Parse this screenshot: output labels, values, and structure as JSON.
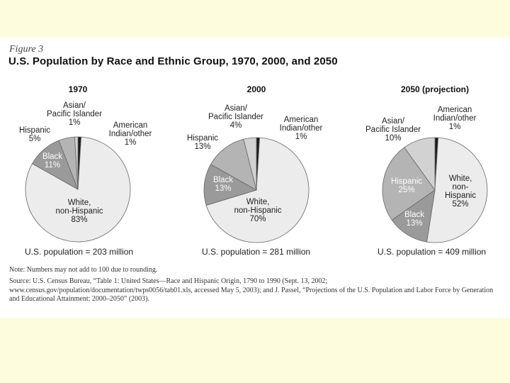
{
  "figure": {
    "label": "Figure 3",
    "title": "U.S. Population by Race and Ethnic Group, 1970, 2000, and 2050"
  },
  "note": "Note: Numbers may not add to 100 due to rounding.",
  "source": "Source: U.S. Census Bureau, “Table 1: United States—Race and Hispanic Origin, 1790 to 1990 (Sept. 13, 2002; www.census.gov/population/documentation/twps0056/tab01.xls, accessed May 5, 2003); and J. Passel, “Projections of the U.S. Population and Labor Force by Generation and Educational Attainment: 2000–2050” (2003).",
  "colors": {
    "white_nonhispanic": "#ececec",
    "black": "#9a9a9a",
    "hispanic": "#b4b4b4",
    "asian": "#d2d2d2",
    "american_indian": "#1a1a1a",
    "outline": "#666666"
  },
  "chart_data": [
    {
      "type": "pie",
      "title": "1970",
      "population_label": "U.S. population = 203 million",
      "slices": [
        {
          "name": "White, non-Hispanic",
          "label_lines": [
            "White,",
            "non-Hispanic",
            "83%"
          ],
          "value": 83,
          "color_key": "white_nonhispanic"
        },
        {
          "name": "Black",
          "label_lines": [
            "Black",
            "11%"
          ],
          "value": 11,
          "color_key": "black"
        },
        {
          "name": "Hispanic",
          "label_lines": [
            "Hispanic",
            "5%"
          ],
          "value": 5,
          "color_key": "hispanic"
        },
        {
          "name": "Asian/Pacific Islander",
          "label_lines": [
            "Asian/",
            "Pacific Islander",
            "1%"
          ],
          "value": 1,
          "color_key": "asian"
        },
        {
          "name": "American Indian/other",
          "label_lines": [
            "American",
            "Indian/other",
            "1%"
          ],
          "value": 1,
          "color_key": "american_indian"
        }
      ]
    },
    {
      "type": "pie",
      "title": "2000",
      "population_label": "U.S. population = 281 million",
      "slices": [
        {
          "name": "White, non-Hispanic",
          "label_lines": [
            "White,",
            "non-Hispanic",
            "70%"
          ],
          "value": 70,
          "color_key": "white_nonhispanic"
        },
        {
          "name": "Black",
          "label_lines": [
            "Black",
            "13%"
          ],
          "value": 13,
          "color_key": "black"
        },
        {
          "name": "Hispanic",
          "label_lines": [
            "Hispanic",
            "13%"
          ],
          "value": 13,
          "color_key": "hispanic"
        },
        {
          "name": "Asian/Pacific Islander",
          "label_lines": [
            "Asian/",
            "Pacific Islander",
            "4%"
          ],
          "value": 4,
          "color_key": "asian"
        },
        {
          "name": "American Indian/other",
          "label_lines": [
            "American",
            "Indian/other",
            "1%"
          ],
          "value": 1,
          "color_key": "american_indian"
        }
      ]
    },
    {
      "type": "pie",
      "title": "2050 (projection)",
      "population_label": "U.S. population = 409 million",
      "slices": [
        {
          "name": "White, non-Hispanic",
          "label_lines": [
            "White,",
            "non-",
            "Hispanic",
            "52%"
          ],
          "value": 52,
          "color_key": "white_nonhispanic"
        },
        {
          "name": "Black",
          "label_lines": [
            "Black",
            "13%"
          ],
          "value": 13,
          "color_key": "black"
        },
        {
          "name": "Hispanic",
          "label_lines": [
            "Hispanic",
            "25%"
          ],
          "value": 25,
          "color_key": "hispanic"
        },
        {
          "name": "Asian/Pacific Islander",
          "label_lines": [
            "Asian/",
            "Pacific Islander",
            "10%"
          ],
          "value": 10,
          "color_key": "asian"
        },
        {
          "name": "American Indian/other",
          "label_lines": [
            "American",
            "Indian/other",
            "1%"
          ],
          "value": 1,
          "color_key": "american_indian"
        }
      ]
    }
  ]
}
